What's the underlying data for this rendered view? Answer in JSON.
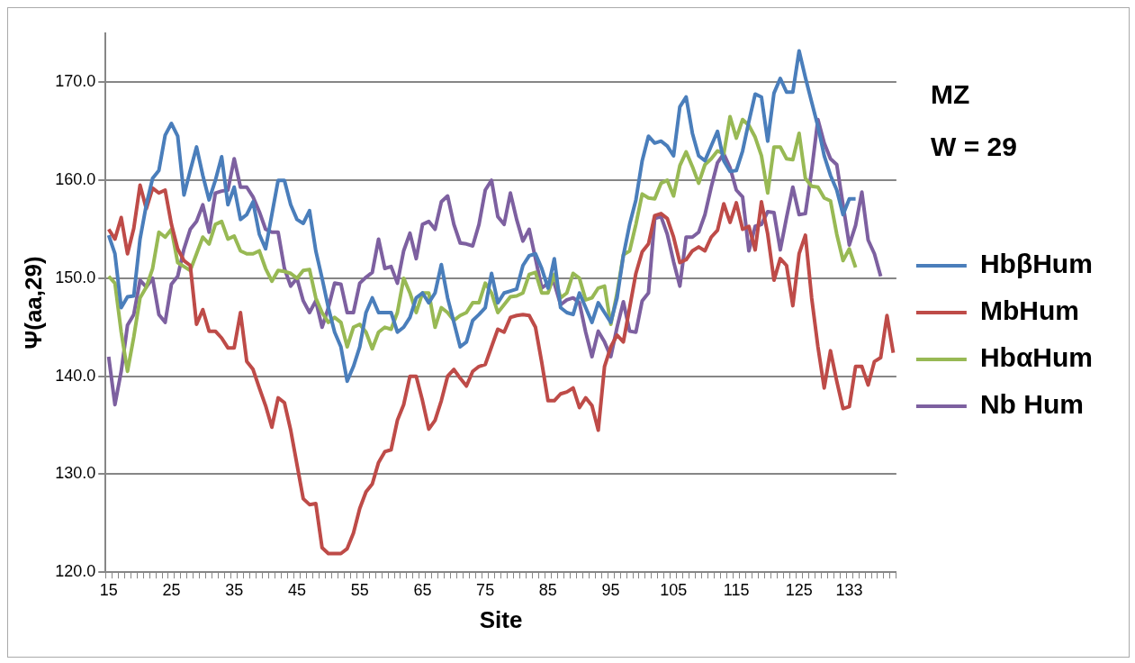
{
  "chart_data": {
    "type": "line",
    "xlabel": "Site",
    "ylabel": "Ψ(aa,29)",
    "annotations": [
      "MZ",
      "W = 29"
    ],
    "categories": [
      "15",
      null,
      null,
      null,
      null,
      null,
      null,
      null,
      null,
      null,
      "25",
      null,
      null,
      null,
      null,
      null,
      null,
      null,
      null,
      null,
      "35",
      null,
      null,
      null,
      null,
      null,
      null,
      null,
      null,
      null,
      "45",
      null,
      null,
      null,
      null,
      null,
      null,
      null,
      null,
      null,
      "55",
      null,
      null,
      null,
      null,
      null,
      null,
      null,
      null,
      null,
      "65",
      null,
      null,
      null,
      null,
      null,
      null,
      null,
      null,
      null,
      "75",
      null,
      null,
      null,
      null,
      null,
      null,
      null,
      null,
      null,
      "85",
      null,
      null,
      null,
      null,
      null,
      null,
      null,
      null,
      null,
      "95",
      null,
      null,
      null,
      null,
      null,
      null,
      null,
      null,
      null,
      "105",
      null,
      null,
      null,
      null,
      null,
      null,
      null,
      null,
      null,
      "115",
      null,
      null,
      null,
      null,
      null,
      null,
      null,
      null,
      null,
      "125",
      null,
      null,
      null,
      null,
      null,
      null,
      null,
      "133",
      null,
      null,
      null,
      null,
      null,
      null,
      null
    ],
    "ylim": [
      120,
      175
    ],
    "yticks": [
      {
        "value": 120,
        "label": "120.0"
      },
      {
        "value": 130,
        "label": "130.0"
      },
      {
        "value": 140,
        "label": "140.0"
      },
      {
        "value": 150,
        "label": "150.0"
      },
      {
        "value": 160,
        "label": "160.0"
      },
      {
        "value": 170,
        "label": "170.0"
      }
    ],
    "grid": "y",
    "legend": "right",
    "marker": "none",
    "line_style": "solid",
    "series": [
      {
        "name": "HbβHum",
        "color": "#4a7ebb",
        "values": [
          154.4,
          152.5,
          147,
          148.1,
          148.2,
          154,
          157.5,
          160.2,
          161,
          164.6,
          165.8,
          164.5,
          158.5,
          161,
          163.4,
          160.5,
          158,
          160,
          162.4,
          157.5,
          159.3,
          156,
          156.5,
          157.8,
          154.5,
          153,
          156.5,
          160,
          160,
          157.5,
          156,
          155.6,
          156.9,
          152.8,
          150,
          147,
          144.5,
          143,
          139.5,
          141,
          143,
          146.5,
          148,
          146.5,
          146.5,
          146.5,
          144.5,
          145,
          146,
          148,
          148.5,
          147.5,
          148.5,
          151.4,
          148,
          145.5,
          143,
          143.5,
          145.7,
          146.3,
          147,
          150.5,
          147.5,
          148.5,
          148.7,
          148.9,
          151.3,
          152.3,
          152.5,
          151,
          149,
          152,
          147,
          146.5,
          146.3,
          148.5,
          147,
          145.5,
          147.5,
          146.5,
          145.5,
          148,
          152.3,
          155.5,
          158,
          162,
          164.5,
          163.8,
          164,
          163.5,
          162.5,
          167.5,
          168.5,
          164.8,
          162.5,
          162,
          163.5,
          165,
          162,
          160.9,
          161,
          163,
          166,
          168.8,
          168.5,
          164,
          168.9,
          170.4,
          169,
          169,
          173.2,
          170.5,
          168,
          165.5,
          162.5,
          160.5,
          159,
          156.5,
          158.1,
          158.1,
          null,
          null,
          null,
          null,
          null,
          null
        ]
      },
      {
        "name": "MbHum",
        "color": "#be4b48",
        "values": [
          155,
          154,
          156.2,
          152.5,
          155.1,
          159.5,
          157.1,
          159.2,
          158.7,
          159,
          155.5,
          153,
          151.8,
          151.3,
          145.3,
          146.8,
          144.6,
          144.6,
          143.9,
          142.9,
          142.9,
          146.5,
          141.5,
          140.7,
          138.8,
          137,
          134.8,
          137.8,
          137.3,
          134.5,
          131,
          127.5,
          126.9,
          127,
          122.5,
          121.9,
          121.9,
          121.9,
          122.4,
          124,
          126.5,
          128.2,
          129,
          131.2,
          132.3,
          132.5,
          135.5,
          137.1,
          140,
          140,
          137.5,
          134.6,
          135.5,
          137.5,
          140,
          140.7,
          139.8,
          139,
          140.5,
          141,
          141.2,
          143,
          144.8,
          144.5,
          146,
          146.2,
          146.3,
          146.2,
          145,
          141.4,
          137.5,
          137.5,
          138.2,
          138.4,
          138.8,
          136.8,
          137.8,
          137,
          134.5,
          141,
          143,
          144.2,
          143.5,
          147,
          150.5,
          152.7,
          153.5,
          156.4,
          156.6,
          156.1,
          154.2,
          151.6,
          151.9,
          152.8,
          153.2,
          152.8,
          154.2,
          154.9,
          157.6,
          155.7,
          157.7,
          155,
          155.3,
          152.9,
          157.8,
          154.5,
          149.8,
          152,
          151.3,
          147.2,
          152.5,
          154.4,
          148,
          143,
          138.8,
          142.6,
          139.5,
          136.7,
          136.9,
          141,
          141,
          139.1,
          141.5,
          141.9,
          146.2,
          142.4
        ]
      },
      {
        "name": "HbαHum",
        "color": "#98b954",
        "values": [
          150.2,
          149.5,
          144.5,
          140.5,
          144,
          148,
          149.1,
          151,
          154.7,
          154.2,
          155,
          151.6,
          151.2,
          150.8,
          152.5,
          154.2,
          153.5,
          155.5,
          155.8,
          154,
          154.3,
          152.8,
          152.5,
          152.5,
          152.8,
          151,
          149.7,
          150.8,
          150.7,
          150.5,
          150,
          150.8,
          150.9,
          148,
          146.5,
          145.5,
          146,
          145.5,
          143,
          145,
          145.3,
          144.5,
          142.8,
          144.5,
          145,
          144.8,
          146.5,
          150,
          148.5,
          146.5,
          148.5,
          148.5,
          145,
          147,
          146.5,
          145.7,
          146.2,
          146.5,
          147.5,
          147.5,
          149.5,
          148.5,
          146.5,
          147.3,
          148.1,
          148.2,
          148.5,
          150.4,
          150.6,
          148.5,
          148.5,
          150.4,
          148,
          148.5,
          150.5,
          150,
          147.8,
          148,
          149,
          149.2,
          145.3,
          148.5,
          152.4,
          152.8,
          155.5,
          158.6,
          158.2,
          158.1,
          159.7,
          160,
          158.4,
          161.5,
          162.9,
          161.4,
          159.7,
          161.6,
          162.2,
          163,
          162.7,
          166.5,
          164.3,
          166.2,
          165.6,
          164.4,
          162.5,
          158.7,
          163.4,
          163.4,
          162.2,
          162.1,
          164.8,
          160.2,
          159.4,
          159.3,
          158.2,
          157.9,
          154.5,
          151.8,
          153,
          151.1,
          null,
          null,
          null,
          null,
          null,
          null
        ]
      },
      {
        "name": "Nb Hum",
        "color": "#7d60a0",
        "values": [
          142,
          137.1,
          140.5,
          145.2,
          146.3,
          149.8,
          149.1,
          150,
          146.3,
          145.5,
          149.4,
          150.2,
          153,
          155,
          155.8,
          157.5,
          154.7,
          158.7,
          158.9,
          159,
          162.2,
          159.3,
          159.3,
          158.3,
          156.8,
          155,
          154.7,
          154.7,
          151,
          149.2,
          150,
          147.7,
          146.5,
          147.7,
          145,
          147,
          149.5,
          149.4,
          146.5,
          146.5,
          149.5,
          150.1,
          150.6,
          154,
          151,
          151.2,
          149.5,
          152.8,
          154.6,
          152,
          155.5,
          155.8,
          155,
          157.8,
          158.4,
          155.5,
          153.6,
          153.5,
          153.3,
          155.5,
          159,
          160,
          156.3,
          155.5,
          158.7,
          156,
          153.8,
          155,
          152,
          149,
          149.5,
          149.5,
          147.3,
          147.8,
          148,
          147.5,
          144.5,
          142,
          144.6,
          143.5,
          142,
          145,
          147.6,
          144.6,
          144.5,
          147.7,
          148.5,
          156.1,
          156.3,
          154.5,
          151.7,
          149.2,
          154.2,
          154.2,
          154.7,
          156.5,
          159.3,
          161.8,
          162.7,
          161.3,
          159,
          158.3,
          152.8,
          155.3,
          155.5,
          156.8,
          156.7,
          152.9,
          156.2,
          159.3,
          156.5,
          156.6,
          161,
          166.2,
          163.8,
          162.2,
          161.6,
          157.5,
          153.4,
          155.4,
          158.8,
          153.9,
          152.5,
          150.2,
          null,
          null
        ]
      }
    ]
  }
}
